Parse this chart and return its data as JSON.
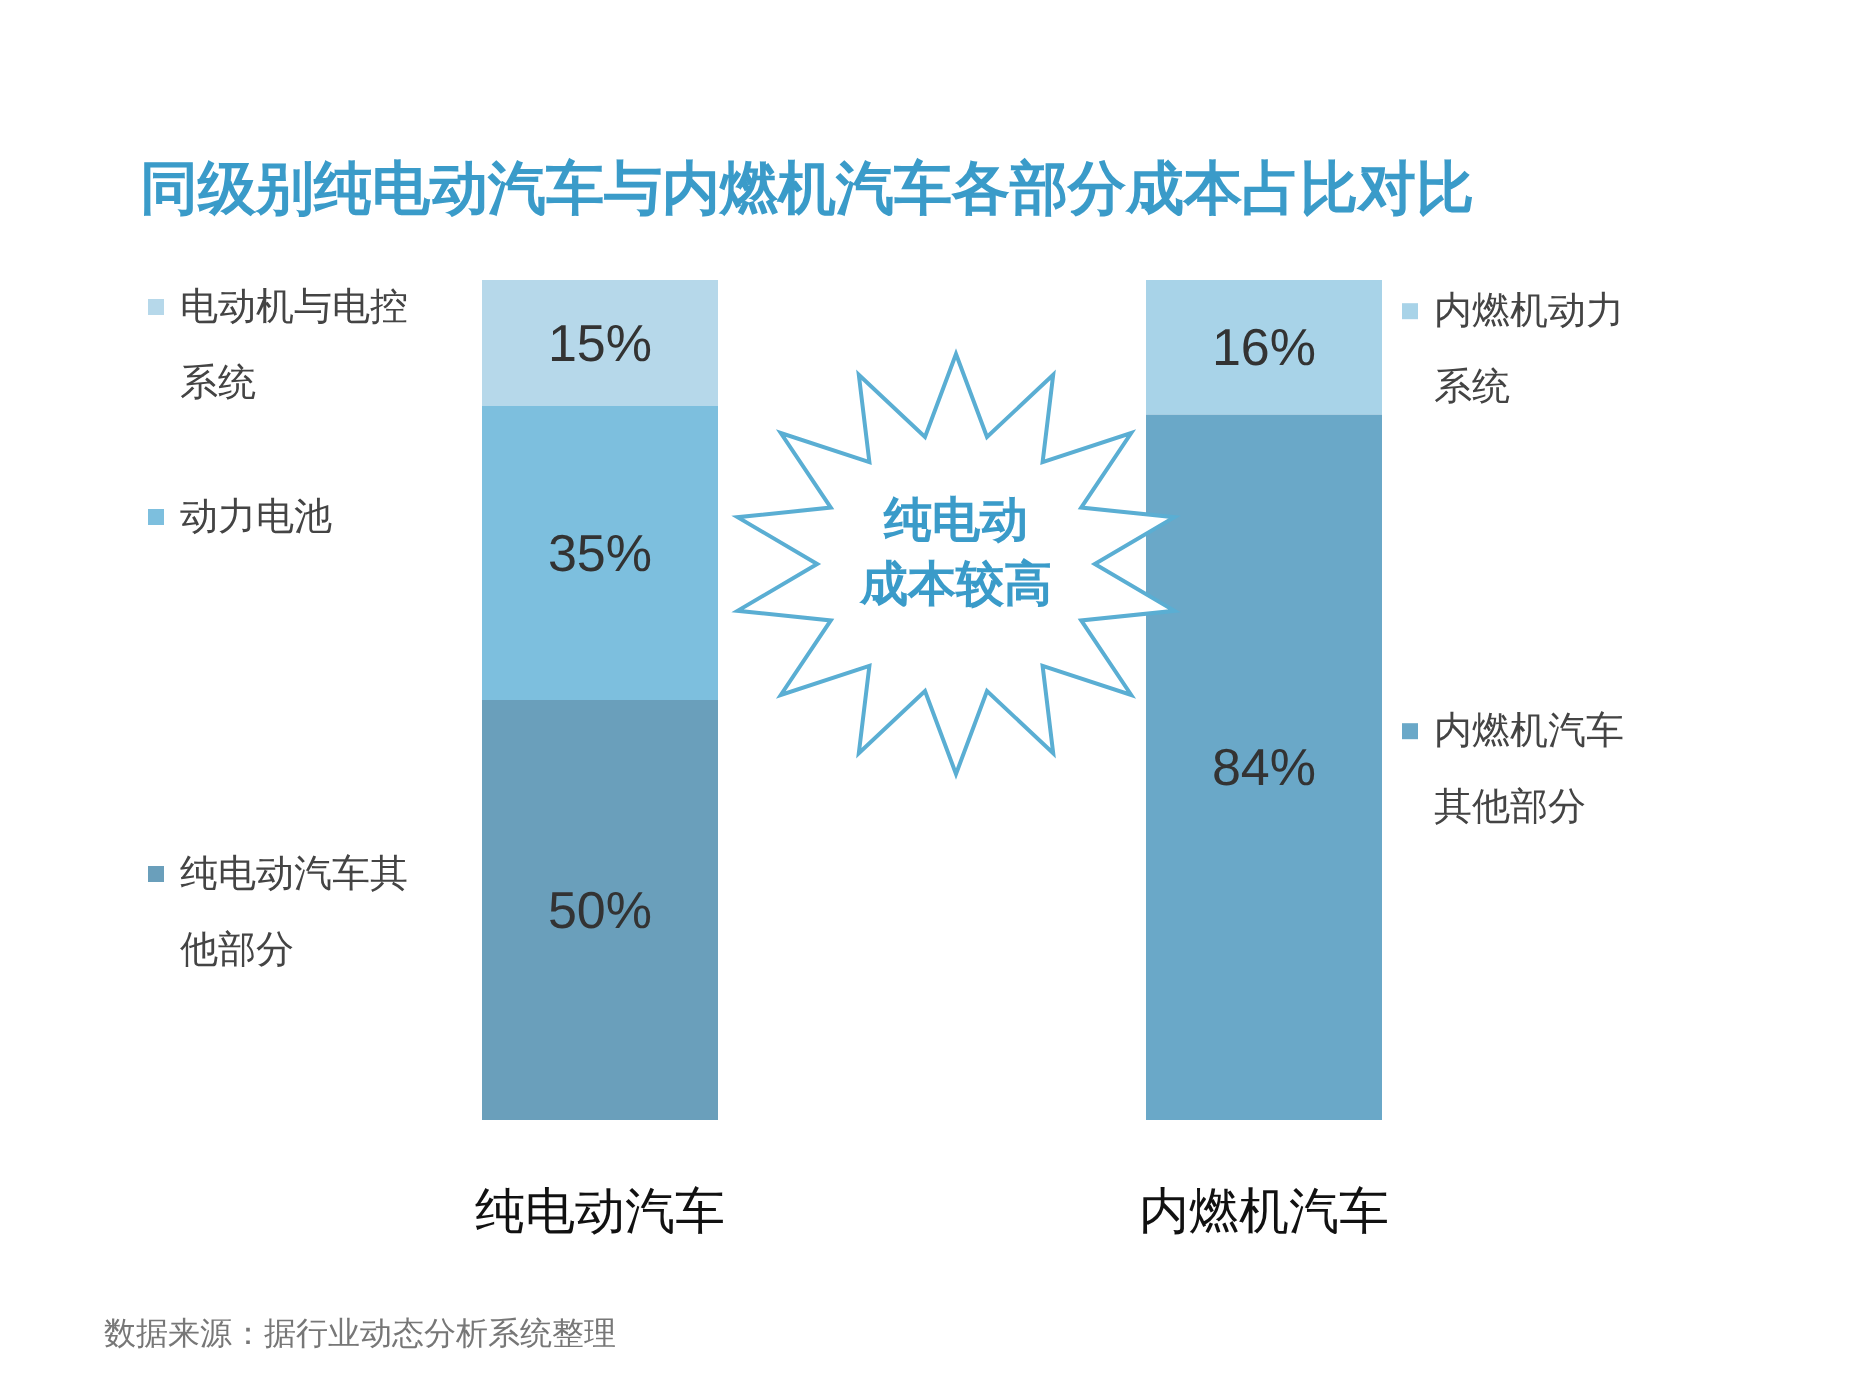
{
  "chart_data": {
    "type": "bar",
    "stacked": true,
    "legend": "left",
    "title": "同级别纯电动汽车与内燃机汽车各部分成本占比对比",
    "categories": [
      "纯电动汽车",
      "内燃机汽车"
    ],
    "series": [
      {
        "name": "纯电动汽车其他部分",
        "color": "#6a9fbb",
        "values": [
          50,
          null
        ],
        "value_labels": [
          "50%",
          null
        ]
      },
      {
        "name": "动力电池",
        "color": "#7dbfde",
        "values": [
          35,
          null
        ],
        "value_labels": [
          "35%",
          null
        ]
      },
      {
        "name": "电动机与电控系统",
        "color": "#b6d8ea",
        "values": [
          15,
          null
        ],
        "value_labels": [
          "15%",
          null
        ]
      },
      {
        "name": "内燃机汽车其他部分",
        "color": "#6aa8c8",
        "values": [
          null,
          84
        ],
        "value_labels": [
          null,
          "84%"
        ]
      },
      {
        "name": "内燃机动力系统",
        "color": "#a8d3e8",
        "values": [
          null,
          16
        ],
        "value_labels": [
          null,
          "16%"
        ]
      }
    ],
    "annotations": [
      "纯电动成本较高",
      "数据来源：据行业动态分析系统整理"
    ]
  }
}
